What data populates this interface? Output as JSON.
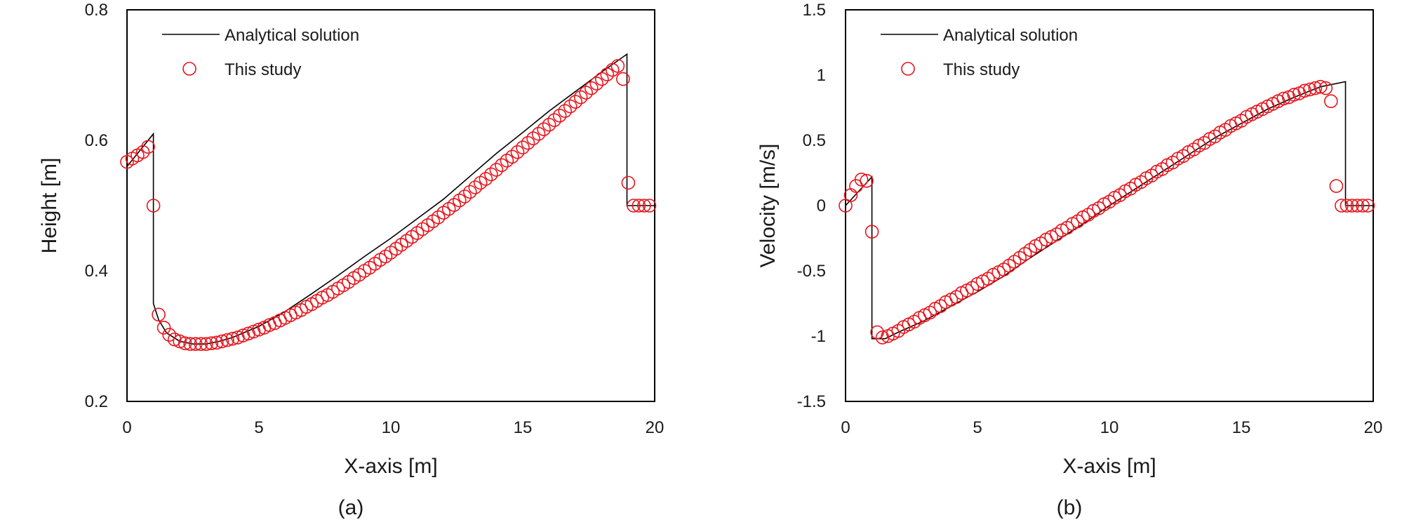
{
  "chart_data": [
    {
      "type": "line",
      "panel_label": "(a)",
      "xlabel": "X-axis [m]",
      "ylabel": "Height [m]",
      "xlim": [
        0,
        20
      ],
      "ylim": [
        0.2,
        0.8
      ],
      "xticks": [
        "0",
        "5",
        "10",
        "15",
        "20"
      ],
      "yticks": [
        "0.2",
        "0.4",
        "0.6",
        "0.8"
      ],
      "grid": false,
      "legend_position": "top-left",
      "series": [
        {
          "name": "Analytical solution",
          "style": "line",
          "color": "#000000",
          "x": [
            0,
            0.5,
            1.0,
            1.0,
            1.2,
            1.5,
            2.0,
            2.5,
            3,
            3.5,
            4,
            5,
            6,
            7,
            8,
            9,
            10,
            11,
            12,
            13,
            14,
            15,
            16,
            17,
            18,
            18.95,
            18.95,
            20
          ],
          "y": [
            0.56,
            0.585,
            0.61,
            0.35,
            0.325,
            0.305,
            0.292,
            0.288,
            0.288,
            0.292,
            0.298,
            0.315,
            0.338,
            0.365,
            0.393,
            0.422,
            0.45,
            0.48,
            0.51,
            0.545,
            0.58,
            0.612,
            0.645,
            0.675,
            0.705,
            0.732,
            0.5,
            0.5
          ]
        },
        {
          "name": "This study",
          "style": "markers",
          "color": "#e8141c",
          "x": [
            0.0,
            0.2,
            0.4,
            0.6,
            0.8,
            1.0,
            1.2,
            1.4,
            1.6,
            1.8,
            2.0,
            2.2,
            2.4,
            2.6,
            2.8,
            3.0,
            3.2,
            3.4,
            3.6,
            3.8,
            4.0,
            4.2,
            4.4,
            4.6,
            4.8,
            5.0,
            5.2,
            5.4,
            5.6,
            5.8,
            6.0,
            6.2,
            6.4,
            6.6,
            6.8,
            7.0,
            7.2,
            7.4,
            7.6,
            7.8,
            8.0,
            8.2,
            8.4,
            8.6,
            8.8,
            9.0,
            9.2,
            9.4,
            9.6,
            9.8,
            10.0,
            10.2,
            10.4,
            10.6,
            10.8,
            11.0,
            11.2,
            11.4,
            11.6,
            11.8,
            12.0,
            12.2,
            12.4,
            12.6,
            12.8,
            13.0,
            13.2,
            13.4,
            13.6,
            13.8,
            14.0,
            14.2,
            14.4,
            14.6,
            14.8,
            15.0,
            15.2,
            15.4,
            15.6,
            15.8,
            16.0,
            16.2,
            16.4,
            16.6,
            16.8,
            17.0,
            17.2,
            17.4,
            17.6,
            17.8,
            18.0,
            18.2,
            18.4,
            18.6,
            18.8,
            19.0,
            19.2,
            19.4,
            19.6,
            19.8
          ],
          "y": [
            0.567,
            0.572,
            0.577,
            0.582,
            0.59,
            0.5,
            0.333,
            0.313,
            0.302,
            0.295,
            0.292,
            0.289,
            0.288,
            0.288,
            0.288,
            0.288,
            0.289,
            0.29,
            0.292,
            0.294,
            0.296,
            0.298,
            0.301,
            0.304,
            0.307,
            0.31,
            0.313,
            0.317,
            0.32,
            0.324,
            0.328,
            0.332,
            0.336,
            0.34,
            0.345,
            0.349,
            0.354,
            0.359,
            0.363,
            0.368,
            0.373,
            0.378,
            0.383,
            0.389,
            0.394,
            0.4,
            0.405,
            0.411,
            0.417,
            0.422,
            0.428,
            0.434,
            0.44,
            0.446,
            0.452,
            0.458,
            0.464,
            0.47,
            0.476,
            0.482,
            0.489,
            0.495,
            0.501,
            0.508,
            0.514,
            0.521,
            0.528,
            0.535,
            0.541,
            0.548,
            0.555,
            0.562,
            0.569,
            0.575,
            0.582,
            0.589,
            0.596,
            0.603,
            0.61,
            0.617,
            0.624,
            0.631,
            0.638,
            0.645,
            0.652,
            0.659,
            0.666,
            0.673,
            0.68,
            0.687,
            0.694,
            0.701,
            0.708,
            0.714,
            0.694,
            0.535,
            0.5,
            0.5,
            0.5,
            0.5
          ]
        }
      ]
    },
    {
      "type": "line",
      "panel_label": "(b)",
      "xlabel": "X-axis [m]",
      "ylabel": "Velocity [m/s]",
      "xlim": [
        0,
        20
      ],
      "ylim": [
        -1.5,
        1.5
      ],
      "xticks": [
        "0",
        "5",
        "10",
        "15",
        "20"
      ],
      "yticks": [
        "-1.5",
        "-1",
        "-0.5",
        "0",
        "0.5",
        "1",
        "1.5"
      ],
      "grid": false,
      "legend_position": "top-left",
      "series": [
        {
          "name": "Analytical solution",
          "style": "line",
          "color": "#000000",
          "x": [
            0,
            0.5,
            1.0,
            1.0,
            1.5,
            2,
            3,
            4,
            5,
            6,
            7,
            8,
            9,
            10,
            11,
            12,
            13,
            14,
            15,
            16,
            17,
            18,
            18.95,
            18.95,
            20
          ],
          "y": [
            0,
            0.11,
            0.22,
            -1.02,
            -1.02,
            -0.97,
            -0.88,
            -0.77,
            -0.66,
            -0.54,
            -0.4,
            -0.27,
            -0.14,
            0.0,
            0.13,
            0.26,
            0.39,
            0.52,
            0.63,
            0.74,
            0.83,
            0.91,
            0.95,
            0,
            0
          ]
        },
        {
          "name": "This study",
          "style": "markers",
          "color": "#e8141c",
          "x": [
            0.0,
            0.2,
            0.4,
            0.6,
            0.8,
            1.0,
            1.2,
            1.4,
            1.6,
            1.8,
            2.0,
            2.2,
            2.4,
            2.6,
            2.8,
            3.0,
            3.2,
            3.4,
            3.6,
            3.8,
            4.0,
            4.2,
            4.4,
            4.6,
            4.8,
            5.0,
            5.2,
            5.4,
            5.6,
            5.8,
            6.0,
            6.2,
            6.4,
            6.6,
            6.8,
            7.0,
            7.2,
            7.4,
            7.6,
            7.8,
            8.0,
            8.2,
            8.4,
            8.6,
            8.8,
            9.0,
            9.2,
            9.4,
            9.6,
            9.8,
            10.0,
            10.2,
            10.4,
            10.6,
            10.8,
            11.0,
            11.2,
            11.4,
            11.6,
            11.8,
            12.0,
            12.2,
            12.4,
            12.6,
            12.8,
            13.0,
            13.2,
            13.4,
            13.6,
            13.8,
            14.0,
            14.2,
            14.4,
            14.6,
            14.8,
            15.0,
            15.2,
            15.4,
            15.6,
            15.8,
            16.0,
            16.2,
            16.4,
            16.6,
            16.8,
            17.0,
            17.2,
            17.4,
            17.6,
            17.8,
            18.0,
            18.2,
            18.4,
            18.6,
            18.8,
            19.0,
            19.2,
            19.4,
            19.6,
            19.8
          ],
          "y": [
            0.0,
            0.08,
            0.15,
            0.2,
            0.19,
            -0.2,
            -0.97,
            -1.01,
            -1.0,
            -0.98,
            -0.96,
            -0.93,
            -0.91,
            -0.89,
            -0.86,
            -0.84,
            -0.82,
            -0.79,
            -0.77,
            -0.74,
            -0.72,
            -0.7,
            -0.67,
            -0.65,
            -0.63,
            -0.6,
            -0.58,
            -0.56,
            -0.53,
            -0.51,
            -0.49,
            -0.46,
            -0.43,
            -0.4,
            -0.37,
            -0.34,
            -0.31,
            -0.29,
            -0.26,
            -0.24,
            -0.22,
            -0.19,
            -0.17,
            -0.14,
            -0.12,
            -0.09,
            -0.07,
            -0.04,
            -0.02,
            0.01,
            0.03,
            0.06,
            0.08,
            0.11,
            0.13,
            0.16,
            0.18,
            0.21,
            0.23,
            0.26,
            0.28,
            0.31,
            0.33,
            0.36,
            0.38,
            0.41,
            0.43,
            0.46,
            0.48,
            0.51,
            0.53,
            0.56,
            0.58,
            0.61,
            0.63,
            0.65,
            0.68,
            0.7,
            0.72,
            0.74,
            0.76,
            0.78,
            0.8,
            0.82,
            0.83,
            0.85,
            0.86,
            0.88,
            0.89,
            0.9,
            0.91,
            0.9,
            0.8,
            0.15,
            0.0,
            0.0,
            0.0,
            0.0,
            0.0,
            0.0
          ]
        }
      ]
    }
  ]
}
